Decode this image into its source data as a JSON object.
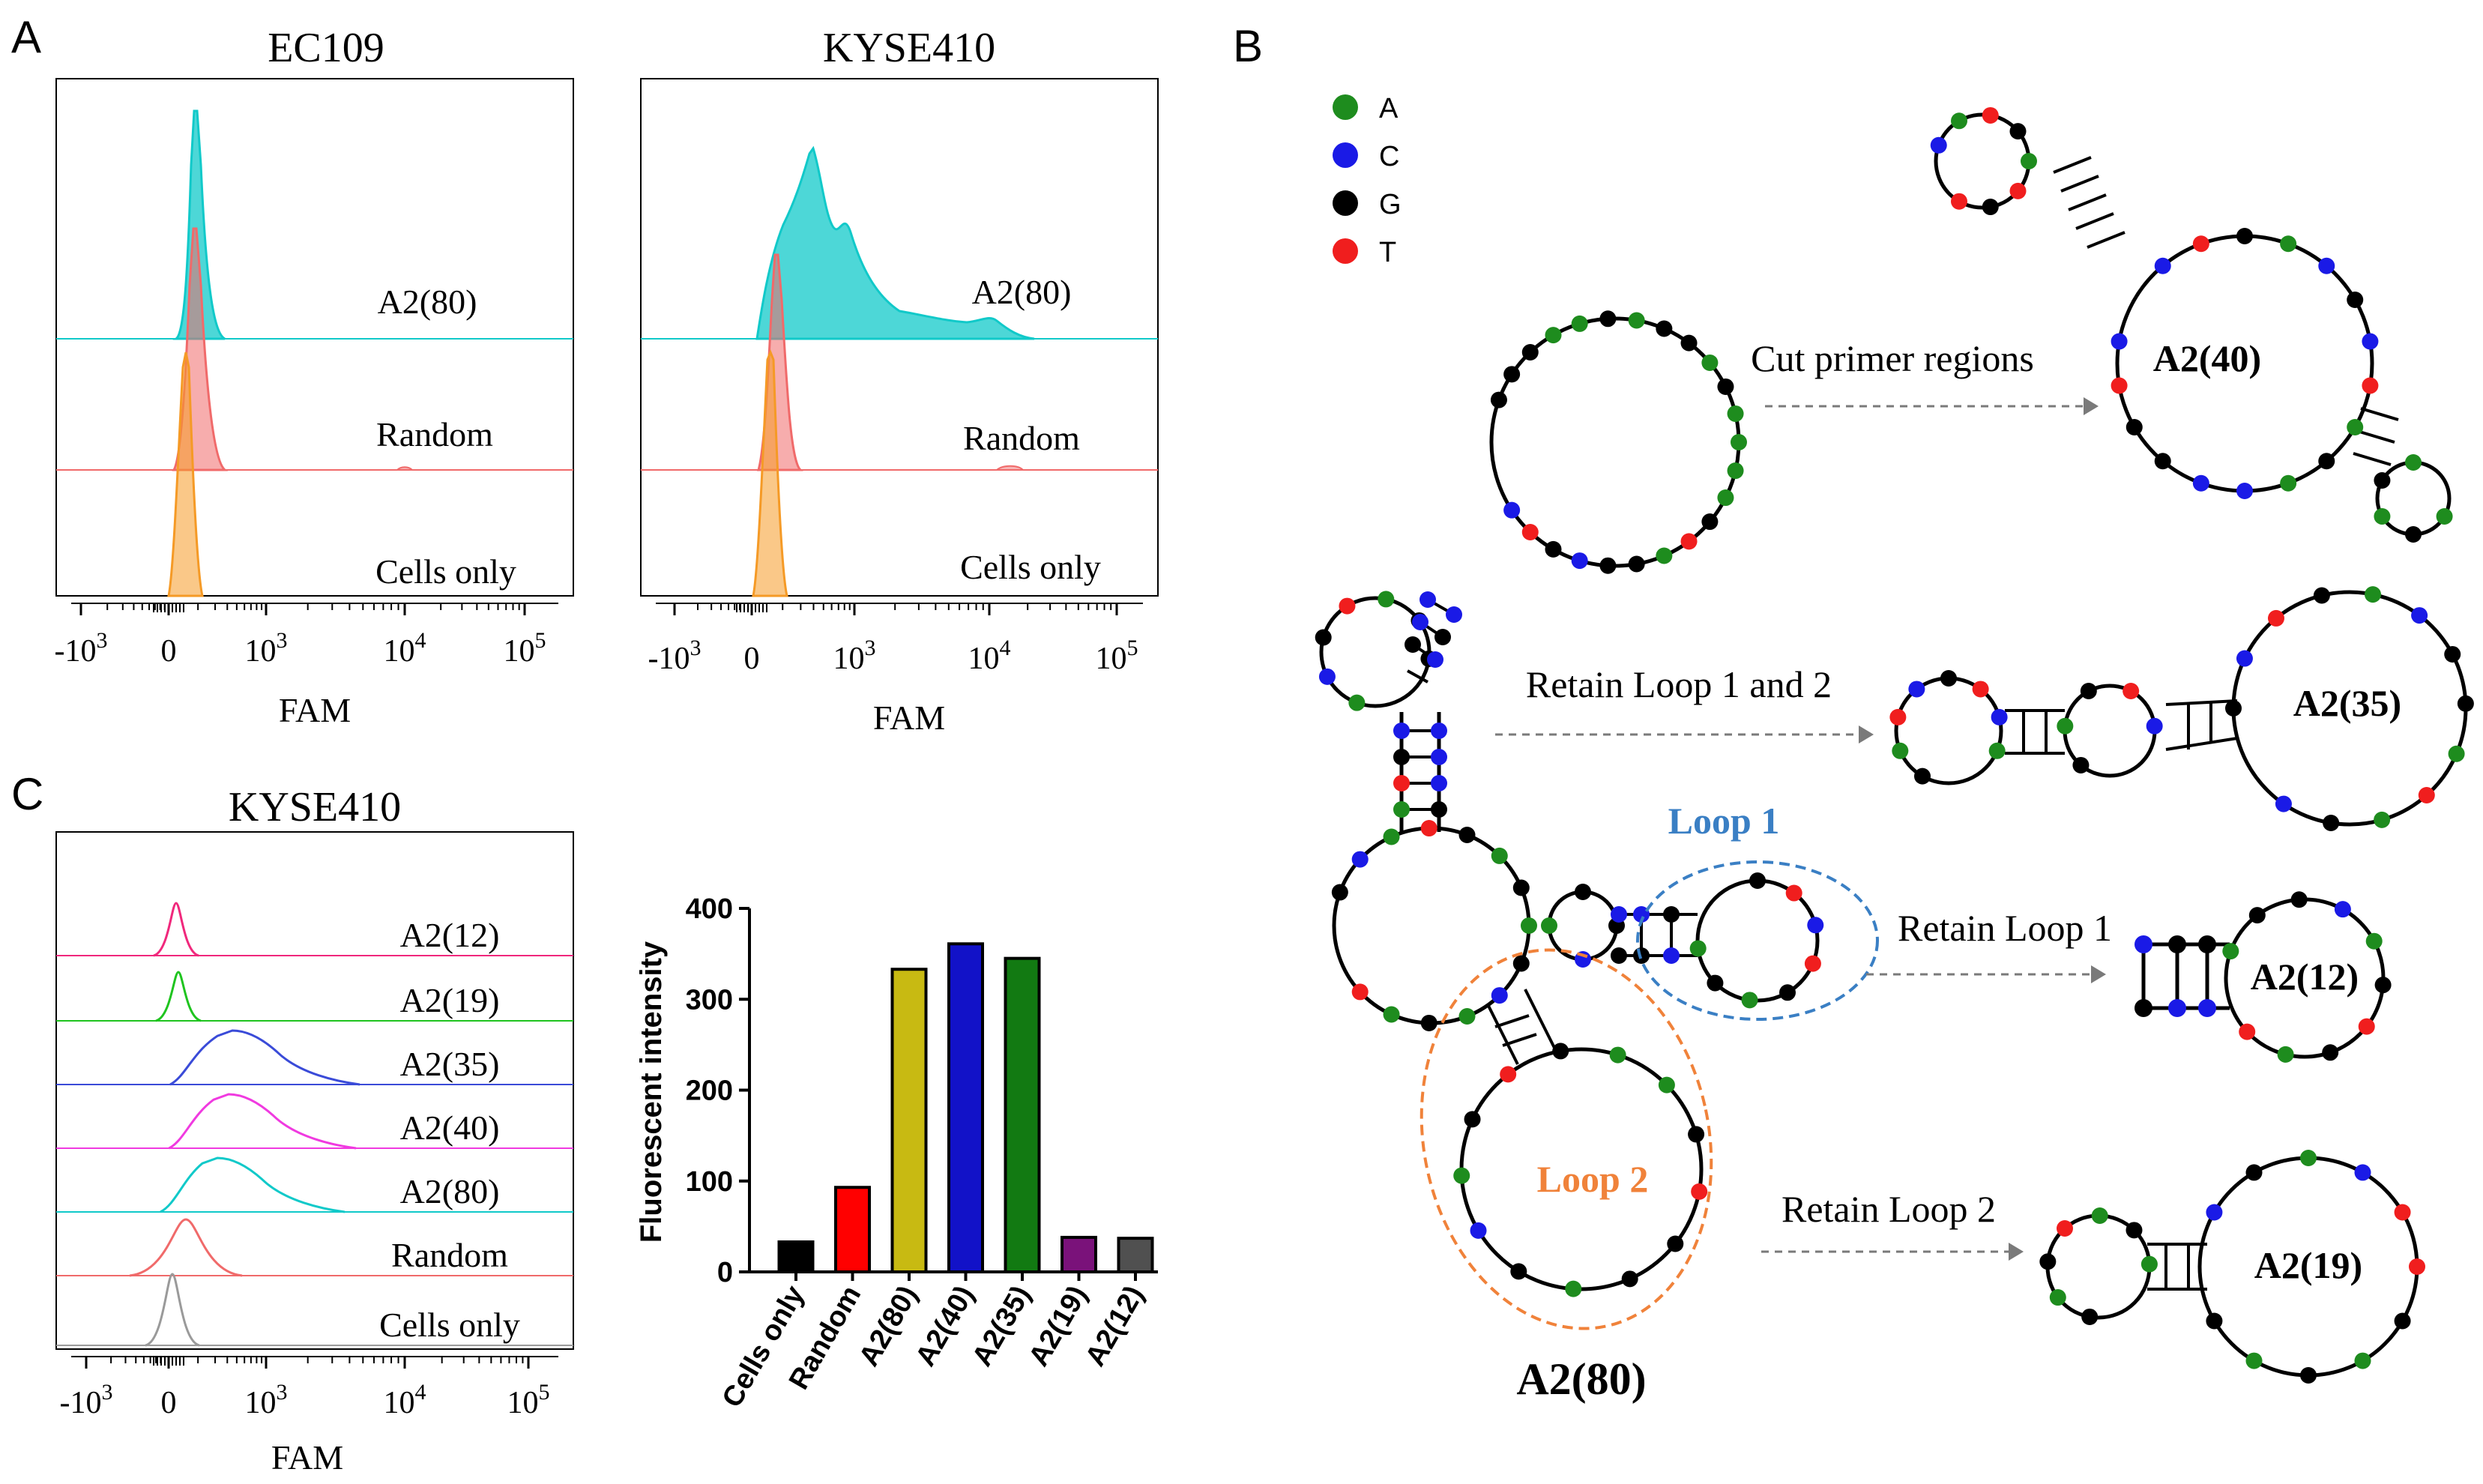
{
  "panels": {
    "A": {
      "letter": "A",
      "plots": [
        {
          "title": "EC109",
          "curves": [
            {
              "label": "A2(80)",
              "color": "#11C9C9"
            },
            {
              "label": "Random",
              "color": "#F06A6A"
            },
            {
              "label": "Cells only",
              "color": "#F59A26"
            }
          ],
          "xticks": [
            "-10",
            "0",
            "10",
            "10",
            "10"
          ],
          "xtick_exps": [
            "3",
            "",
            "3",
            "4",
            "5"
          ],
          "xlabel": "FAM"
        },
        {
          "title": "KYSE410",
          "curves": [
            {
              "label": "A2(80)",
              "color": "#11C9C9"
            },
            {
              "label": "Random",
              "color": "#F06A6A"
            },
            {
              "label": "Cells only",
              "color": "#F59A26"
            }
          ],
          "xticks": [
            "-10",
            "0",
            "10",
            "10",
            "10"
          ],
          "xtick_exps": [
            "3",
            "",
            "3",
            "4",
            "5"
          ],
          "xlabel": "FAM"
        }
      ]
    },
    "C": {
      "letter": "C",
      "hist": {
        "title": "KYSE410",
        "curves": [
          {
            "label": "A2(12)",
            "color": "#F0287C"
          },
          {
            "label": "A2(19)",
            "color": "#1FC41F"
          },
          {
            "label": "A2(35)",
            "color": "#3A4BD8"
          },
          {
            "label": "A2(40)",
            "color": "#F03AE0"
          },
          {
            "label": "A2(80)",
            "color": "#11C9C9"
          },
          {
            "label": "Random",
            "color": "#F06A6A"
          },
          {
            "label": "Cells only",
            "color": "#9A9A9A"
          }
        ],
        "xticks": [
          "-10",
          "0",
          "10",
          "10",
          "10"
        ],
        "xtick_exps": [
          "3",
          "",
          "3",
          "4",
          "5"
        ],
        "xlabel": "FAM"
      }
    },
    "B": {
      "letter": "B",
      "legend": [
        {
          "base": "A",
          "color": "#1E8C1E"
        },
        {
          "base": "C",
          "color": "#1A1AE6"
        },
        {
          "base": "G",
          "color": "#000000"
        },
        {
          "base": "T",
          "color": "#F01E1E"
        }
      ],
      "main_structure": "A2(80)",
      "loop1": {
        "label": "Loop 1",
        "color": "#3A7FC4"
      },
      "loop2": {
        "label": "Loop 2",
        "color": "#F0823A"
      },
      "derivatives": [
        {
          "arrow": "Cut primer regions",
          "name": "A2(40)"
        },
        {
          "arrow": "Retain Loop 1 and 2",
          "name": "A2(35)"
        },
        {
          "arrow": "Retain Loop 1",
          "name": "A2(12)"
        },
        {
          "arrow": "Retain Loop 2",
          "name": "A2(19)"
        }
      ]
    }
  },
  "chart_data": [
    {
      "type": "area",
      "title": "EC109",
      "xlabel": "FAM",
      "ylabel": "",
      "xscale": "biexponential",
      "xticks": [
        "-10^3",
        "0",
        "10^3",
        "10^4",
        "10^5"
      ],
      "series": [
        {
          "name": "A2(80)",
          "x": [
            0,
            100,
            150,
            200,
            250,
            300,
            400,
            600
          ],
          "y": [
            0,
            0.15,
            0.7,
            1.0,
            0.6,
            0.2,
            0.05,
            0
          ]
        },
        {
          "name": "Random",
          "x": [
            0,
            100,
            150,
            200,
            250,
            300,
            400,
            600
          ],
          "y": [
            0,
            0.2,
            0.8,
            1.0,
            0.6,
            0.2,
            0.05,
            0
          ]
        },
        {
          "name": "Cells only",
          "x": [
            0,
            80,
            130,
            180,
            230,
            300,
            400
          ],
          "y": [
            0,
            0.2,
            0.9,
            1.0,
            0.5,
            0.1,
            0
          ]
        }
      ]
    },
    {
      "type": "area",
      "title": "KYSE410",
      "xlabel": "FAM",
      "ylabel": "",
      "xscale": "biexponential",
      "xticks": [
        "-10^3",
        "0",
        "10^3",
        "10^4",
        "10^5"
      ],
      "series": [
        {
          "name": "A2(80)",
          "x": [
            0,
            100,
            200,
            400,
            600,
            1000,
            3000,
            6000,
            10000,
            20000
          ],
          "y": [
            0,
            0.3,
            0.55,
            1.0,
            0.75,
            0.45,
            0.18,
            0.1,
            0.07,
            0
          ]
        },
        {
          "name": "Random",
          "x": [
            0,
            100,
            150,
            200,
            250,
            300,
            500
          ],
          "y": [
            0,
            0.3,
            0.9,
            1.0,
            0.5,
            0.1,
            0
          ]
        },
        {
          "name": "Cells only",
          "x": [
            0,
            80,
            130,
            180,
            230,
            300,
            400
          ],
          "y": [
            0,
            0.2,
            0.9,
            1.0,
            0.5,
            0.1,
            0
          ]
        }
      ]
    },
    {
      "type": "line",
      "title": "KYSE410",
      "xlabel": "FAM",
      "ylabel": "",
      "xscale": "biexponential",
      "xticks": [
        "-10^3",
        "0",
        "10^3",
        "10^4",
        "10^5"
      ],
      "series": [
        {
          "name": "A2(12)",
          "peak": 150
        },
        {
          "name": "A2(19)",
          "peak": 150
        },
        {
          "name": "A2(35)",
          "peak": 600
        },
        {
          "name": "A2(40)",
          "peak": 600
        },
        {
          "name": "A2(80)",
          "peak": 500
        },
        {
          "name": "Random",
          "peak": 200
        },
        {
          "name": "Cells only",
          "peak": 120
        }
      ]
    },
    {
      "type": "bar",
      "title": "",
      "xlabel": "",
      "ylabel": "Fluorescent intensity",
      "ylim": [
        0,
        400
      ],
      "yticks": [
        0,
        100,
        200,
        300,
        400
      ],
      "categories": [
        "Cells only",
        "Random",
        "A2(80)",
        "A2(40)",
        "A2(35)",
        "A2(19)",
        "A2(12)"
      ],
      "values": [
        33,
        93,
        333,
        361,
        345,
        38,
        37
      ],
      "colors": [
        "#000000",
        "#FF0000",
        "#C8BA12",
        "#1212C8",
        "#127A12",
        "#7A127A",
        "#505050"
      ]
    }
  ]
}
